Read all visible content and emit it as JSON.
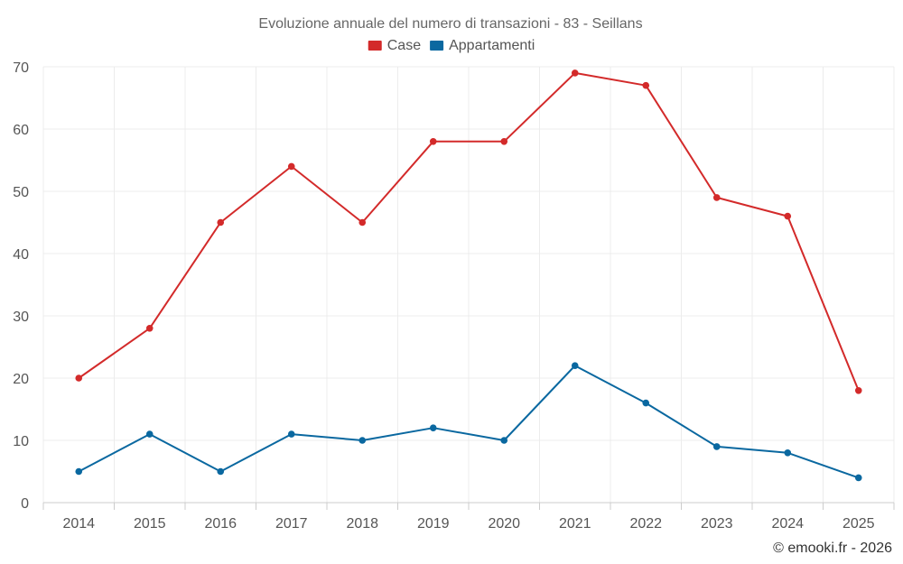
{
  "chart_data": {
    "type": "line",
    "title": "Evoluzione annuale del numero di transazioni - 83 - Seillans",
    "categories": [
      "2014",
      "2015",
      "2016",
      "2017",
      "2018",
      "2019",
      "2020",
      "2021",
      "2022",
      "2023",
      "2024",
      "2025"
    ],
    "series": [
      {
        "name": "Case",
        "color": "#d32a2a",
        "values": [
          20,
          28,
          45,
          54,
          45,
          58,
          58,
          69,
          67,
          49,
          46,
          18
        ]
      },
      {
        "name": "Appartamenti",
        "color": "#0a68a0",
        "values": [
          5,
          11,
          5,
          11,
          10,
          12,
          10,
          22,
          16,
          9,
          8,
          4
        ]
      }
    ],
    "ylim": [
      0,
      70
    ],
    "yticks": [
      0,
      10,
      20,
      30,
      40,
      50,
      60,
      70
    ],
    "grid": true,
    "legend_position": "top-center",
    "xlabel": "",
    "ylabel": ""
  },
  "credit": "© emooki.fr - 2026"
}
